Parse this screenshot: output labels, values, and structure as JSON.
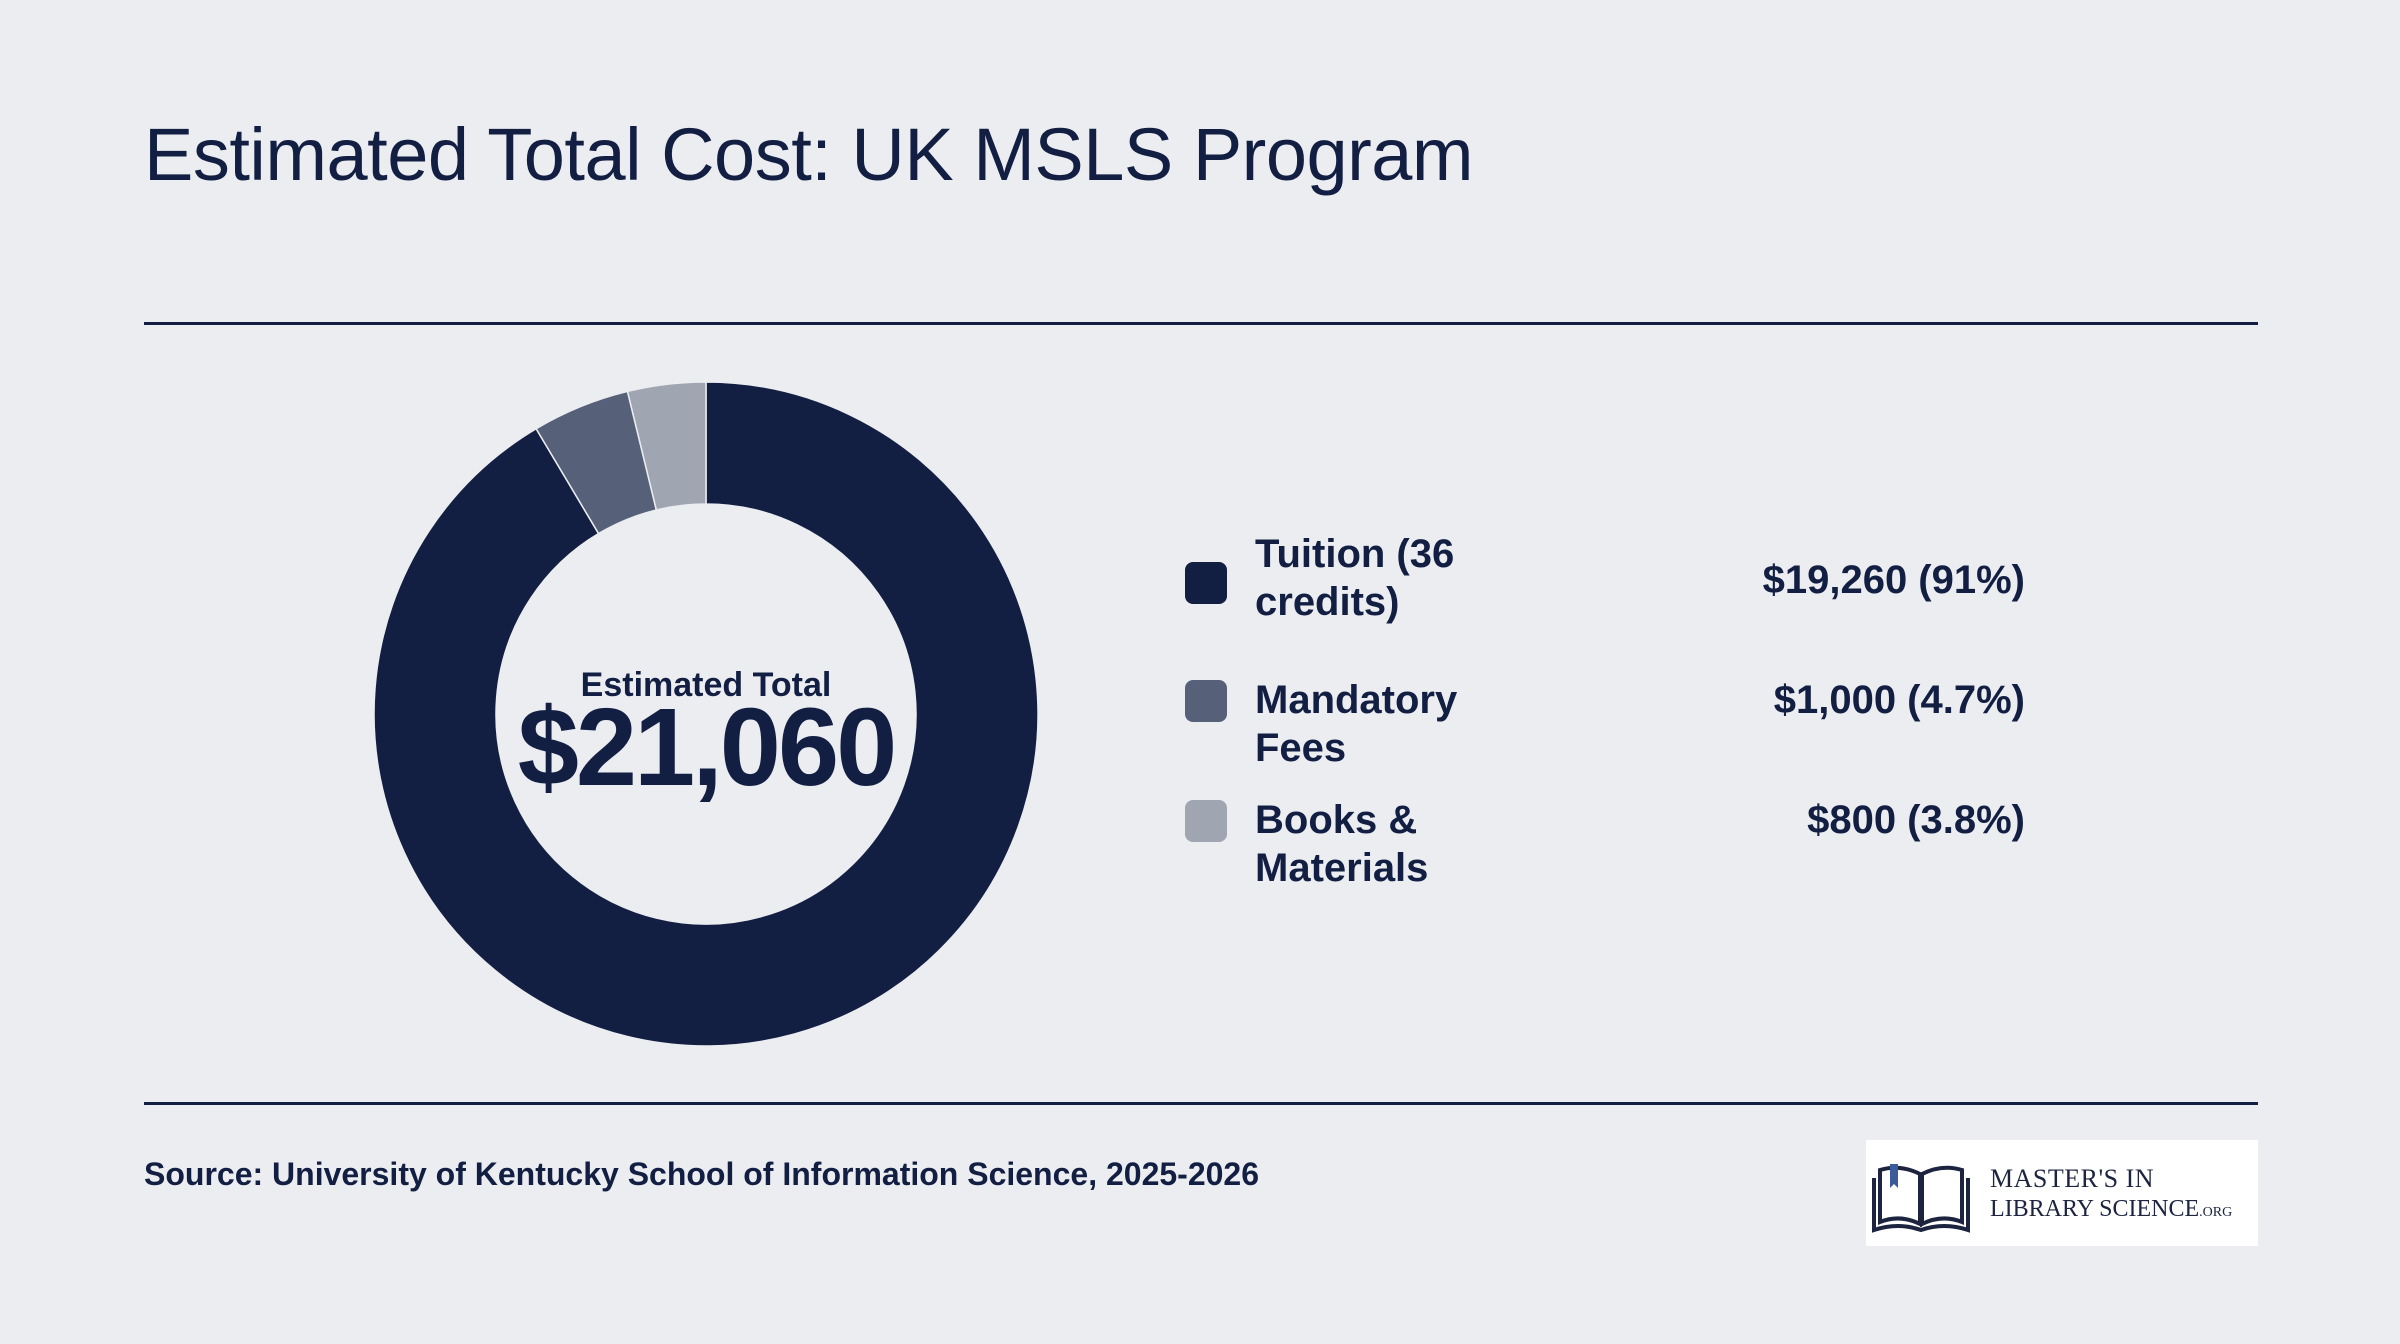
{
  "title": "Estimated Total Cost: UK MSLS Program",
  "center": {
    "label": "Estimated Total",
    "value": "$21,060"
  },
  "chart_data": {
    "type": "pie",
    "variant": "donut",
    "total": 21060,
    "slices": [
      {
        "label": "Tuition (36 credits)",
        "value": 19260,
        "percent": 91,
        "display": "$19,260 (91%)",
        "color": "#121f42"
      },
      {
        "label": "Mandatory Fees",
        "value": 1000,
        "percent": 4.7,
        "display": "$1,000 (4.7%)",
        "color": "#566179"
      },
      {
        "label": "Books & Materials",
        "value": 800,
        "percent": 3.8,
        "display": "$800 (3.8%)",
        "color": "#a0a5b2"
      }
    ]
  },
  "source": "Source: University of Kentucky School of Information Science, 2025-2026",
  "logo": {
    "line1": "MASTER'S IN",
    "line2": "LIBRARY SCIENCE",
    "suffix": ".ORG",
    "icon": "open-book-icon"
  },
  "colors": {
    "background": "#ecedf1",
    "text": "#121f42"
  }
}
